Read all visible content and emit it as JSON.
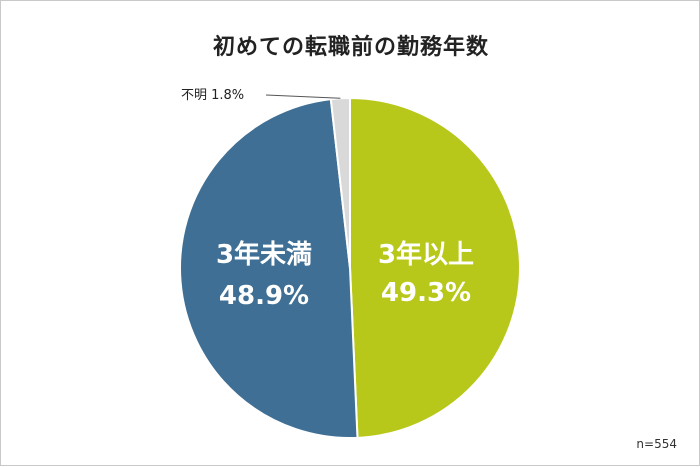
{
  "chart_data": {
    "type": "pie",
    "title": "初めての転職前の勤務年数",
    "slices": [
      {
        "label": "3年以上",
        "value": 49.3,
        "value_label": "49.3%",
        "color": "#b8c81a"
      },
      {
        "label": "3年未満",
        "value": 48.9,
        "value_label": "48.9%",
        "color": "#3f6f94"
      },
      {
        "label": "不明",
        "value": 1.8,
        "value_label": "1.8%",
        "color": "#d9d9d9"
      }
    ],
    "note": "n=554",
    "legend": "none"
  }
}
